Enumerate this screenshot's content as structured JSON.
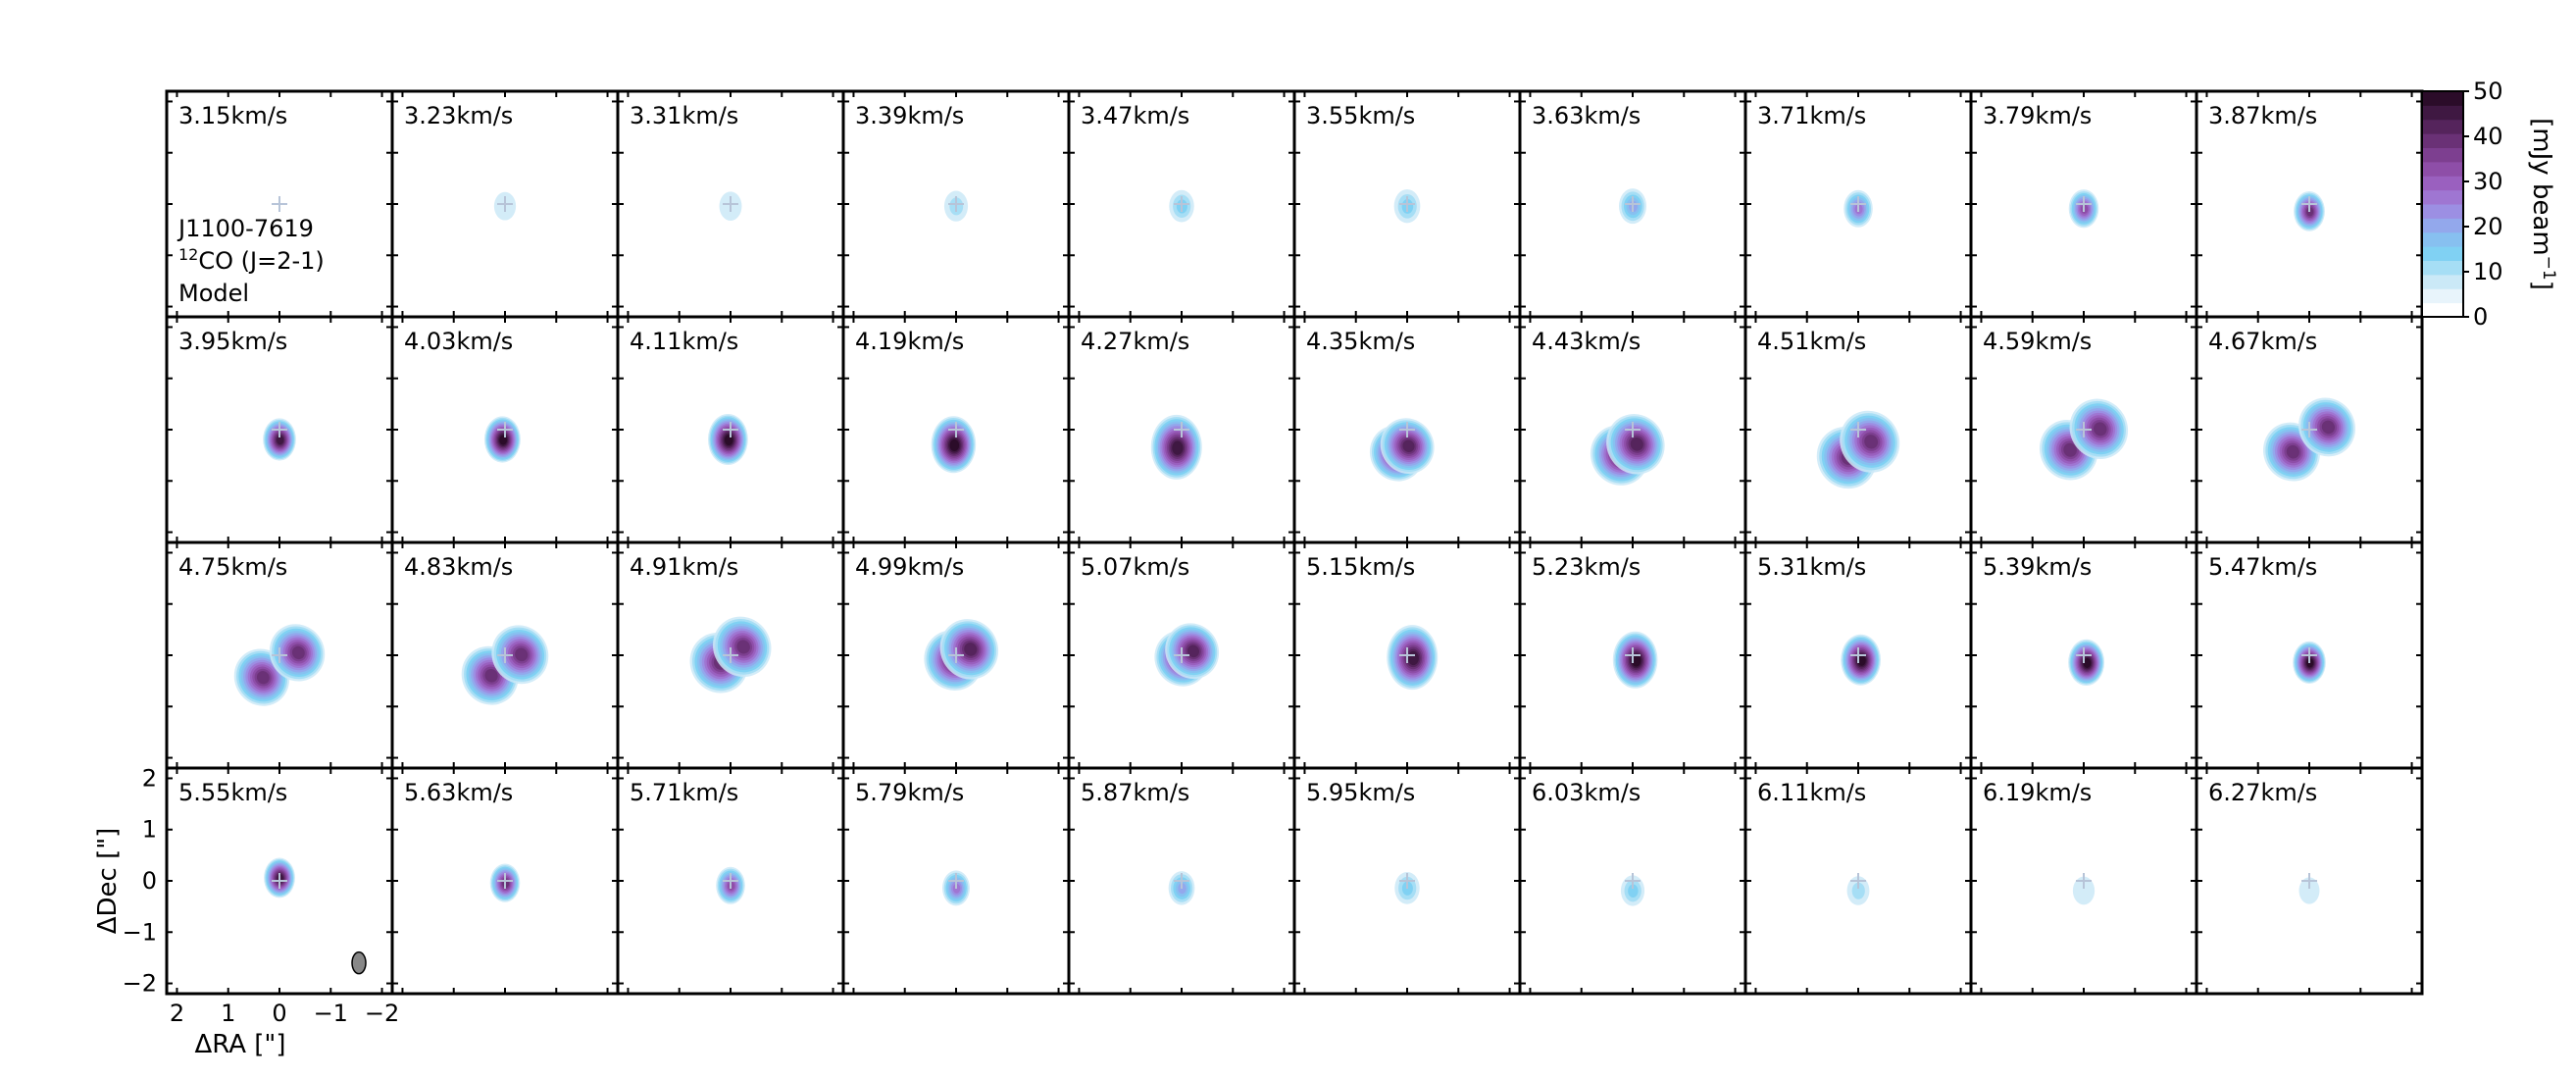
{
  "chart_data": {
    "type": "heatmap",
    "layout": {
      "rows": 4,
      "cols": 10
    },
    "channels": [
      {
        "label": "3.15km/s",
        "dx": 0.0,
        "dy": 0.0,
        "intensity": 0.0,
        "size": 0.0,
        "split": 0.0
      },
      {
        "label": "3.23km/s",
        "dx": 0.0,
        "dy": 0.15,
        "intensity": 0.04,
        "size": 0.32,
        "split": 0.0
      },
      {
        "label": "3.31km/s",
        "dx": 0.0,
        "dy": 0.15,
        "intensity": 0.06,
        "size": 0.34,
        "split": 0.0
      },
      {
        "label": "3.39km/s",
        "dx": 0.0,
        "dy": 0.15,
        "intensity": 0.12,
        "size": 0.38,
        "split": 0.0
      },
      {
        "label": "3.47km/s",
        "dx": 0.0,
        "dy": 0.15,
        "intensity": 0.18,
        "size": 0.42,
        "split": 0.0
      },
      {
        "label": "3.55km/s",
        "dx": 0.0,
        "dy": 0.15,
        "intensity": 0.22,
        "size": 0.46,
        "split": 0.0
      },
      {
        "label": "3.63km/s",
        "dx": 0.0,
        "dy": 0.15,
        "intensity": 0.3,
        "size": 0.5,
        "split": 0.0
      },
      {
        "label": "3.71km/s",
        "dx": 0.0,
        "dy": 0.1,
        "intensity": 0.45,
        "size": 0.55,
        "split": 0.0
      },
      {
        "label": "3.79km/s",
        "dx": 0.0,
        "dy": 0.1,
        "intensity": 0.6,
        "size": 0.58,
        "split": 0.0
      },
      {
        "label": "3.87km/s",
        "dx": 0.0,
        "dy": 0.05,
        "intensity": 0.75,
        "size": 0.62,
        "split": 0.0
      },
      {
        "label": "3.95km/s",
        "dx": 0.0,
        "dy": 0.0,
        "intensity": 0.85,
        "size": 0.68,
        "split": 0.0
      },
      {
        "label": "4.03km/s",
        "dx": 0.05,
        "dy": 0.0,
        "intensity": 0.95,
        "size": 0.78,
        "split": 0.0
      },
      {
        "label": "4.11km/s",
        "dx": 0.05,
        "dy": 0.0,
        "intensity": 0.95,
        "size": 0.9,
        "split": 0.0
      },
      {
        "label": "4.19km/s",
        "dx": 0.05,
        "dy": -0.1,
        "intensity": 0.9,
        "size": 1.05,
        "split": 0.0
      },
      {
        "label": "4.27km/s",
        "dx": 0.1,
        "dy": -0.15,
        "intensity": 0.85,
        "size": 1.25,
        "split": 0.0
      },
      {
        "label": "4.35km/s",
        "dx": 0.1,
        "dy": -0.2,
        "intensity": 0.8,
        "size": 1.4,
        "split": 0.3
      },
      {
        "label": "4.43km/s",
        "dx": 0.1,
        "dy": -0.2,
        "intensity": 0.8,
        "size": 1.55,
        "split": 0.45
      },
      {
        "label": "4.51km/s",
        "dx": 0.0,
        "dy": -0.2,
        "intensity": 0.75,
        "size": 1.6,
        "split": 0.65
      },
      {
        "label": "4.59km/s",
        "dx": 0.0,
        "dy": 0.0,
        "intensity": 0.75,
        "size": 1.55,
        "split": 0.85
      },
      {
        "label": "4.67km/s",
        "dx": 0.0,
        "dy": 0.0,
        "intensity": 0.75,
        "size": 1.5,
        "split": 1.0
      },
      {
        "label": "4.75km/s",
        "dx": 0.0,
        "dy": 0.0,
        "intensity": 0.75,
        "size": 1.45,
        "split": 1.0
      },
      {
        "label": "4.83km/s",
        "dx": 0.0,
        "dy": 0.0,
        "intensity": 0.75,
        "size": 1.5,
        "split": 0.85
      },
      {
        "label": "4.91km/s",
        "dx": 0.0,
        "dy": 0.2,
        "intensity": 0.75,
        "size": 1.55,
        "split": 0.65
      },
      {
        "label": "4.99km/s",
        "dx": -0.1,
        "dy": 0.2,
        "intensity": 0.8,
        "size": 1.55,
        "split": 0.45
      },
      {
        "label": "5.07km/s",
        "dx": -0.1,
        "dy": 0.2,
        "intensity": 0.8,
        "size": 1.4,
        "split": 0.3
      },
      {
        "label": "5.15km/s",
        "dx": -0.1,
        "dy": 0.15,
        "intensity": 0.85,
        "size": 1.25,
        "split": 0.0
      },
      {
        "label": "5.23km/s",
        "dx": -0.05,
        "dy": 0.1,
        "intensity": 0.9,
        "size": 1.05,
        "split": 0.0
      },
      {
        "label": "5.31km/s",
        "dx": -0.05,
        "dy": 0.1,
        "intensity": 0.95,
        "size": 0.9,
        "split": 0.0
      },
      {
        "label": "5.39km/s",
        "dx": -0.05,
        "dy": 0.05,
        "intensity": 0.95,
        "size": 0.78,
        "split": 0.0
      },
      {
        "label": "5.47km/s",
        "dx": 0.0,
        "dy": 0.05,
        "intensity": 0.9,
        "size": 0.68,
        "split": 0.0
      },
      {
        "label": "5.55km/s",
        "dx": 0.0,
        "dy": 0.25,
        "intensity": 0.85,
        "size": 0.62,
        "split": 0.0
      },
      {
        "label": "5.63km/s",
        "dx": 0.0,
        "dy": 0.15,
        "intensity": 0.75,
        "size": 0.58,
        "split": 0.0
      },
      {
        "label": "5.71km/s",
        "dx": 0.0,
        "dy": 0.1,
        "intensity": 0.6,
        "size": 0.55,
        "split": 0.0
      },
      {
        "label": "5.79km/s",
        "dx": 0.0,
        "dy": 0.05,
        "intensity": 0.45,
        "size": 0.5,
        "split": 0.0
      },
      {
        "label": "5.87km/s",
        "dx": 0.0,
        "dy": 0.05,
        "intensity": 0.3,
        "size": 0.46,
        "split": 0.0
      },
      {
        "label": "5.95km/s",
        "dx": 0.0,
        "dy": 0.05,
        "intensity": 0.22,
        "size": 0.42,
        "split": 0.0
      },
      {
        "label": "6.03km/s",
        "dx": 0.0,
        "dy": 0.0,
        "intensity": 0.18,
        "size": 0.38,
        "split": 0.0
      },
      {
        "label": "6.11km/s",
        "dx": 0.0,
        "dy": 0.0,
        "intensity": 0.12,
        "size": 0.34,
        "split": 0.0
      },
      {
        "label": "6.19km/s",
        "dx": 0.0,
        "dy": 0.0,
        "intensity": 0.06,
        "size": 0.32,
        "split": 0.0
      },
      {
        "label": "6.27km/s",
        "dx": 0.0,
        "dy": 0.0,
        "intensity": 0.02,
        "size": 0.28,
        "split": 0.0
      }
    ],
    "annotation_lines": [
      "J1100-7619",
      "CO (J=2-1)",
      "Model"
    ],
    "annotation_superscript": "12",
    "xlabel": "ΔRA [\"]",
    "ylabel": "ΔDec [\"]",
    "xticks": [
      "2",
      "1",
      "0",
      "−1",
      "−2"
    ],
    "yticks": [
      "2",
      "1",
      "0",
      "−1",
      "−2"
    ],
    "xlim": [
      2.2,
      -2.2
    ],
    "ylim": [
      -2.2,
      2.2
    ],
    "colorbar": {
      "label": "[mJy beam",
      "label_superscript": "−1",
      "label_close": "]",
      "ticks": [
        "0",
        "10",
        "20",
        "30",
        "40",
        "50"
      ],
      "range": [
        0,
        50
      ],
      "colors": [
        "#ffffff",
        "#e8f4fb",
        "#cbe9f7",
        "#a6def5",
        "#80d1f3",
        "#87c0f0",
        "#93a8ec",
        "#9c8fe3",
        "#9f76d2",
        "#9a60bf",
        "#8e4ea8",
        "#7d3f90",
        "#6a3176",
        "#55245c",
        "#3f1842",
        "#2b0c29"
      ]
    },
    "beam_marker": "beam ellipse",
    "center_marker": "cross"
  }
}
